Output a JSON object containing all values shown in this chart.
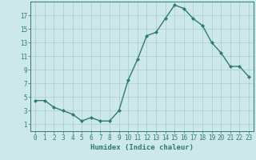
{
  "x": [
    0,
    1,
    2,
    3,
    4,
    5,
    6,
    7,
    8,
    9,
    10,
    11,
    12,
    13,
    14,
    15,
    16,
    17,
    18,
    19,
    20,
    21,
    22,
    23
  ],
  "y": [
    4.5,
    4.5,
    3.5,
    3.0,
    2.5,
    1.5,
    2.0,
    1.5,
    1.5,
    3.0,
    7.5,
    10.5,
    14.0,
    14.5,
    16.5,
    18.5,
    18.0,
    16.5,
    15.5,
    13.0,
    11.5,
    9.5,
    9.5,
    8.0
  ],
  "line_color": "#2e7d6e",
  "marker": "D",
  "markersize": 2,
  "linewidth": 1.0,
  "bg_color": "#cce8e8",
  "grid_color": "#aacccc",
  "xlabel": "Humidex (Indice chaleur)",
  "xlim": [
    -0.5,
    23.5
  ],
  "ylim": [
    0,
    19
  ],
  "yticks": [
    1,
    3,
    5,
    7,
    9,
    11,
    13,
    15,
    17
  ],
  "xticks": [
    0,
    1,
    2,
    3,
    4,
    5,
    6,
    7,
    8,
    9,
    10,
    11,
    12,
    13,
    14,
    15,
    16,
    17,
    18,
    19,
    20,
    21,
    22,
    23
  ],
  "xlabel_fontsize": 6.5,
  "tick_fontsize": 5.5
}
